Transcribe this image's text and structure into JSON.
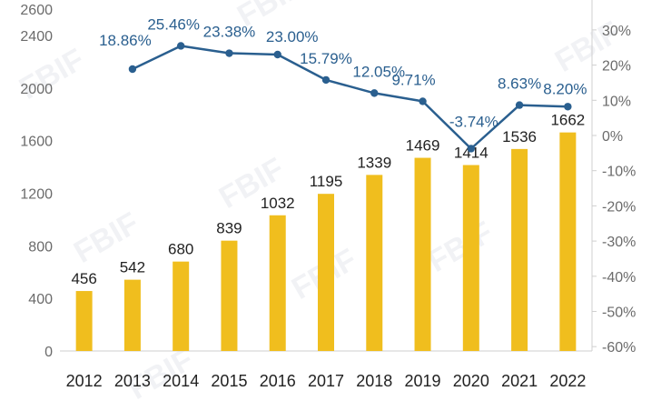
{
  "chart_data": {
    "type": "bar",
    "title": "",
    "xlabel": "",
    "categories": [
      "2012",
      "2013",
      "2014",
      "2015",
      "2016",
      "2017",
      "2018",
      "2019",
      "2020",
      "2021",
      "2022"
    ],
    "series": [
      {
        "name": "bars",
        "type": "bar",
        "axis": "left",
        "color": "#f0be1e",
        "values": [
          456,
          542,
          680,
          839,
          1032,
          1195,
          1339,
          1469,
          1414,
          1536,
          1662
        ],
        "labels": [
          "456",
          "542",
          "680",
          "839",
          "1032",
          "1195",
          "1339",
          "1469",
          "1414",
          "1536",
          "1662"
        ]
      },
      {
        "name": "growth",
        "type": "line",
        "axis": "right",
        "color": "#2a5f8f",
        "values": [
          null,
          18.86,
          25.46,
          23.38,
          23.0,
          15.79,
          12.05,
          9.71,
          -3.74,
          8.63,
          8.2
        ],
        "labels": [
          "",
          "18.86%",
          "25.46%",
          "23.38%",
          "23.00%",
          "15.79%",
          "12.05%",
          "9.71%",
          "-3.74%",
          "8.63%",
          "8.20%"
        ]
      }
    ],
    "y_left": {
      "ylim": [
        0,
        2800
      ],
      "ticks": [
        0,
        400,
        800,
        1200,
        1600,
        2000,
        2400,
        2600
      ],
      "tick_labels": [
        "0",
        "400",
        "800",
        "1200",
        "1600",
        "2000",
        "2400",
        "2600"
      ]
    },
    "y_right": {
      "ylim": [
        -60,
        40
      ],
      "ticks": [
        -60,
        -50,
        -40,
        -30,
        -20,
        -10,
        0,
        10,
        20,
        30
      ],
      "tick_labels": [
        "-60%",
        "-50%",
        "-40%",
        "-30%",
        "-20%",
        "-10%",
        "0%",
        "10%",
        "20%",
        "30%"
      ]
    },
    "watermark": "FBIF",
    "grid": false,
    "legend": "none"
  }
}
